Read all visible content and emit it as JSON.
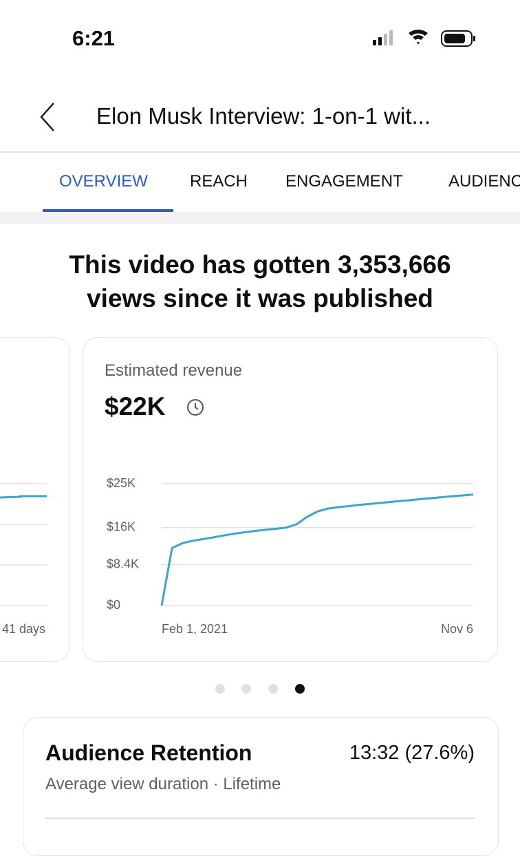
{
  "status_bar": {
    "time": "6:21"
  },
  "header": {
    "title": "Elon Musk Interview: 1-on-1 wit..."
  },
  "tabs": [
    "OVERVIEW",
    "REACH",
    "ENGAGEMENT",
    "AUDIENCE"
  ],
  "headline": {
    "line1": "This video has gotten 3,353,666",
    "line2": "views since it was published"
  },
  "previous_card": {
    "x_label": "41 days"
  },
  "revenue_card": {
    "label": "Estimated revenue",
    "value": "$22K",
    "chart_data": {
      "type": "line",
      "categories": [
        "Feb 1, 2021",
        null,
        null,
        null,
        null,
        null,
        null,
        null,
        null,
        null,
        null,
        null,
        null,
        null,
        null,
        null,
        null,
        null,
        null,
        null,
        null,
        null,
        null,
        null,
        null,
        null,
        null,
        null,
        null,
        null,
        "Nov 6"
      ],
      "series": [
        {
          "color": "#3fa3d1",
          "values": [
            0,
            11800,
            12800,
            13300,
            13650,
            14000,
            14400,
            14750,
            15050,
            15300,
            15550,
            15750,
            16000,
            16700,
            18200,
            19300,
            19900,
            20200,
            20400,
            20650,
            20850,
            21050,
            21250,
            21450,
            21650,
            21850,
            22050,
            22250,
            22450,
            22600,
            22800
          ]
        }
      ],
      "ylim": [
        0,
        25000
      ],
      "yticks": [
        {
          "value": 0,
          "label": "$0"
        },
        {
          "value": 8400,
          "label": "$8.4K"
        },
        {
          "value": 16000,
          "label": "$16K"
        },
        {
          "value": 25000,
          "label": "$25K"
        }
      ],
      "grid": true
    }
  },
  "retention": {
    "title": "Audience Retention",
    "value": "13:32 (27.6%)",
    "subtitle": "Average view duration · Lifetime"
  }
}
